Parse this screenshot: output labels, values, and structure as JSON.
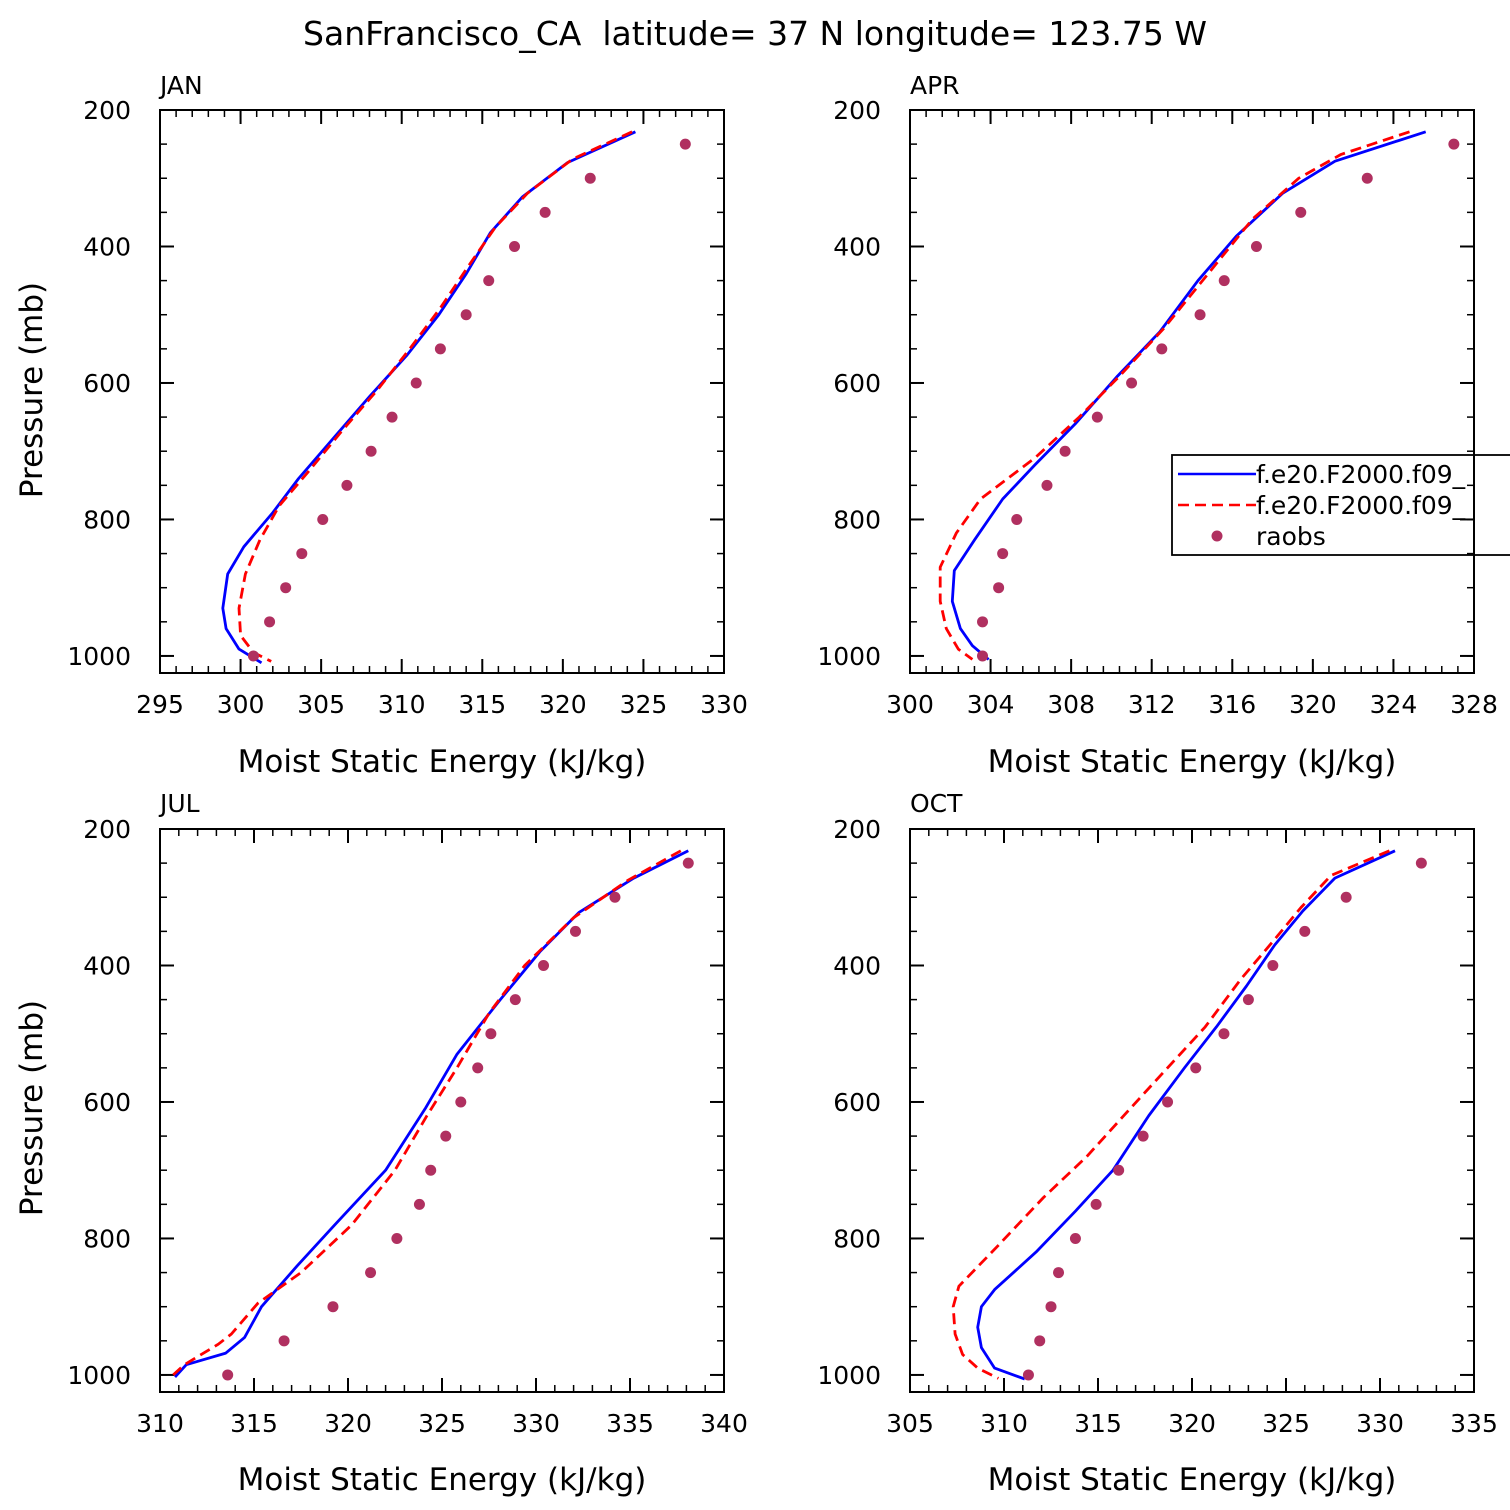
{
  "figure_title": "SanFrancisco_CA  latitude= 37 N longitude= 123.75 W",
  "legend": {
    "entries": [
      {
        "label": "f.e20.F2000.f09_",
        "style": "solid",
        "color": "#0000ff"
      },
      {
        "label": "f.e20.F2000.f09_",
        "style": "dashed",
        "color": "#ff0000"
      },
      {
        "label": "raobs",
        "style": "dot",
        "color": "#b03060"
      }
    ]
  },
  "colors": {
    "series_a": "#0000ff",
    "series_b": "#ff0000",
    "raobs": "#b03060"
  },
  "chart_data": [
    {
      "type": "line",
      "panel_label": "JAN",
      "xlabel": "Moist Static Energy (kJ/kg)",
      "ylabel": "Pressure (mb)",
      "xlim": [
        295,
        330
      ],
      "ylim": [
        200,
        1025
      ],
      "y_inverted": true,
      "xticks": [
        295,
        300,
        305,
        310,
        315,
        320,
        325,
        330
      ],
      "xtick_labels": [
        "295",
        "300",
        "305",
        "310",
        "315",
        "320",
        "325",
        "330"
      ],
      "yticks": [
        200,
        400,
        600,
        800,
        1000
      ],
      "ytick_labels": [
        "200",
        "400",
        "600",
        "800",
        "1000"
      ],
      "series": [
        {
          "style": "solid",
          "points": [
            [
              324.5,
              232
            ],
            [
              320.3,
              277
            ],
            [
              317.5,
              327
            ],
            [
              315.5,
              380
            ],
            [
              314,
              440
            ],
            [
              312.3,
              500
            ],
            [
              310.3,
              560
            ],
            [
              308,
              620
            ],
            [
              305.8,
              680
            ],
            [
              303.6,
              740
            ],
            [
              302,
              790
            ],
            [
              300.2,
              840
            ],
            [
              299.2,
              880
            ],
            [
              298.9,
              930
            ],
            [
              299.1,
              960
            ],
            [
              299.9,
              990
            ],
            [
              301.3,
              1010
            ]
          ]
        },
        {
          "style": "dashed",
          "points": [
            [
              324.3,
              232
            ],
            [
              320.6,
              272
            ],
            [
              317.8,
              322
            ],
            [
              315.8,
              372
            ],
            [
              314.1,
              430
            ],
            [
              312.4,
              490
            ],
            [
              310.5,
              550
            ],
            [
              308.5,
              610
            ],
            [
              306.3,
              670
            ],
            [
              304.2,
              730
            ],
            [
              302.4,
              780
            ],
            [
              301.2,
              830
            ],
            [
              300.3,
              880
            ],
            [
              299.9,
              930
            ],
            [
              300,
              970
            ],
            [
              300.8,
              995
            ],
            [
              301.9,
              1008
            ]
          ]
        },
        {
          "style": "dot",
          "points": [
            [
              327.6,
              250
            ],
            [
              321.7,
              300
            ],
            [
              318.9,
              350
            ],
            [
              317,
              400
            ],
            [
              315.4,
              450
            ],
            [
              314,
              500
            ],
            [
              312.4,
              550
            ],
            [
              310.9,
              600
            ],
            [
              309.4,
              650
            ],
            [
              308.1,
              700
            ],
            [
              306.6,
              750
            ],
            [
              305.1,
              800
            ],
            [
              303.8,
              850
            ],
            [
              302.8,
              900
            ],
            [
              301.8,
              950
            ],
            [
              300.8,
              1000
            ]
          ]
        }
      ]
    },
    {
      "type": "line",
      "panel_label": "APR",
      "xlabel": "Moist Static Energy (kJ/kg)",
      "ylabel": "",
      "xlim": [
        300,
        328
      ],
      "ylim": [
        200,
        1025
      ],
      "y_inverted": true,
      "xticks": [
        300,
        304,
        308,
        312,
        316,
        320,
        324,
        328
      ],
      "xtick_labels": [
        "300",
        "304",
        "308",
        "312",
        "316",
        "320",
        "324",
        "328"
      ],
      "yticks": [
        200,
        400,
        600,
        800,
        1000
      ],
      "ytick_labels": [
        "200",
        "400",
        "600",
        "800",
        "1000"
      ],
      "series": [
        {
          "style": "solid",
          "points": [
            [
              325.6,
              232
            ],
            [
              321.1,
              275
            ],
            [
              318.5,
              322
            ],
            [
              316.2,
              385
            ],
            [
              314.3,
              450
            ],
            [
              312.4,
              525
            ],
            [
              310.3,
              590
            ],
            [
              308.2,
              660
            ],
            [
              306.2,
              720
            ],
            [
              304.6,
              770
            ],
            [
              303.2,
              830
            ],
            [
              302.2,
              875
            ],
            [
              302.1,
              920
            ],
            [
              302.5,
              960
            ],
            [
              303.1,
              985
            ],
            [
              303.9,
              1005
            ]
          ]
        },
        {
          "style": "dashed",
          "points": [
            [
              324.8,
              232
            ],
            [
              321.4,
              265
            ],
            [
              319.3,
              300
            ],
            [
              317,
              360
            ],
            [
              314.8,
              440
            ],
            [
              312.6,
              520
            ],
            [
              310.4,
              590
            ],
            [
              308.4,
              650
            ],
            [
              306.2,
              710
            ],
            [
              303.5,
              770
            ],
            [
              302.3,
              820
            ],
            [
              301.5,
              870
            ],
            [
              301.5,
              920
            ],
            [
              301.8,
              960
            ],
            [
              302.4,
              990
            ],
            [
              303.1,
              1005
            ]
          ]
        },
        {
          "style": "dot",
          "points": [
            [
              327,
              250
            ],
            [
              322.7,
              300
            ],
            [
              319.4,
              350
            ],
            [
              317.2,
              400
            ],
            [
              315.6,
              450
            ],
            [
              314.4,
              500
            ],
            [
              312.5,
              550
            ],
            [
              311,
              600
            ],
            [
              309.3,
              650
            ],
            [
              307.7,
              700
            ],
            [
              306.8,
              750
            ],
            [
              305.3,
              800
            ],
            [
              304.6,
              850
            ],
            [
              304.4,
              900
            ],
            [
              303.6,
              950
            ],
            [
              303.6,
              1000
            ]
          ]
        }
      ]
    },
    {
      "type": "line",
      "panel_label": "JUL",
      "xlabel": "Moist Static Energy (kJ/kg)",
      "ylabel": "Pressure (mb)",
      "xlim": [
        310,
        340
      ],
      "ylim": [
        200,
        1025
      ],
      "y_inverted": true,
      "xticks": [
        310,
        315,
        320,
        325,
        330,
        335,
        340
      ],
      "xtick_labels": [
        "310",
        "315",
        "320",
        "325",
        "330",
        "335",
        "340"
      ],
      "yticks": [
        200,
        400,
        600,
        800,
        1000
      ],
      "ytick_labels": [
        "200",
        "400",
        "600",
        "800",
        "1000"
      ],
      "series": [
        {
          "style": "solid",
          "points": [
            [
              338.1,
              232
            ],
            [
              335.2,
              272
            ],
            [
              332.3,
              322
            ],
            [
              330.2,
              380
            ],
            [
              328.1,
              450
            ],
            [
              325.8,
              530
            ],
            [
              324.1,
              610
            ],
            [
              322,
              700
            ],
            [
              319.3,
              780
            ],
            [
              317.3,
              840
            ],
            [
              315.4,
              900
            ],
            [
              314.5,
              945
            ],
            [
              313.5,
              968
            ],
            [
              311.4,
              985
            ],
            [
              310.8,
              1003
            ]
          ]
        },
        {
          "style": "dashed",
          "points": [
            [
              337.7,
              232
            ],
            [
              334.9,
              275
            ],
            [
              332,
              330
            ],
            [
              329.4,
              400
            ],
            [
              327.5,
              470
            ],
            [
              325.8,
              550
            ],
            [
              324.2,
              620
            ],
            [
              322.5,
              700
            ],
            [
              320.2,
              780
            ],
            [
              317.5,
              850
            ],
            [
              315.2,
              895
            ],
            [
              313.8,
              940
            ],
            [
              313.1,
              955
            ],
            [
              311.3,
              985
            ],
            [
              310.7,
              1000
            ]
          ]
        },
        {
          "style": "dot",
          "points": [
            [
              338.1,
              250
            ],
            [
              334.2,
              300
            ],
            [
              332.1,
              350
            ],
            [
              330.4,
              400
            ],
            [
              328.9,
              450
            ],
            [
              327.6,
              500
            ],
            [
              326.9,
              550
            ],
            [
              326,
              600
            ],
            [
              325.2,
              650
            ],
            [
              324.4,
              700
            ],
            [
              323.8,
              750
            ],
            [
              322.6,
              800
            ],
            [
              321.2,
              850
            ],
            [
              319.2,
              900
            ],
            [
              316.6,
              950
            ],
            [
              313.6,
              1000
            ]
          ]
        }
      ]
    },
    {
      "type": "line",
      "panel_label": "OCT",
      "xlabel": "Moist Static Energy (kJ/kg)",
      "ylabel": "",
      "xlim": [
        305,
        335
      ],
      "ylim": [
        200,
        1025
      ],
      "y_inverted": true,
      "xticks": [
        305,
        310,
        315,
        320,
        325,
        330,
        335
      ],
      "xtick_labels": [
        "305",
        "310",
        "315",
        "320",
        "325",
        "330",
        "335"
      ],
      "yticks": [
        200,
        400,
        600,
        800,
        1000
      ],
      "ytick_labels": [
        "200",
        "400",
        "600",
        "800",
        "1000"
      ],
      "series": [
        {
          "style": "solid",
          "points": [
            [
              330.8,
              232
            ],
            [
              327.6,
              272
            ],
            [
              325.9,
              320
            ],
            [
              324.4,
              370
            ],
            [
              322.9,
              430
            ],
            [
              321.3,
              490
            ],
            [
              319.6,
              550
            ],
            [
              317.7,
              620
            ],
            [
              315.8,
              700
            ],
            [
              313.8,
              760
            ],
            [
              311.7,
              820
            ],
            [
              309.5,
              875
            ],
            [
              308.8,
              900
            ],
            [
              308.6,
              930
            ],
            [
              308.8,
              960
            ],
            [
              309.5,
              990
            ],
            [
              311.1,
              1006
            ]
          ]
        },
        {
          "style": "dashed",
          "points": [
            [
              330.5,
              232
            ],
            [
              327.4,
              268
            ],
            [
              325.8,
              315
            ],
            [
              324.3,
              365
            ],
            [
              322.6,
              420
            ],
            [
              320.7,
              490
            ],
            [
              318.7,
              550
            ],
            [
              316.7,
              610
            ],
            [
              314.4,
              680
            ],
            [
              312.1,
              740
            ],
            [
              309.7,
              810
            ],
            [
              307.6,
              870
            ],
            [
              307.3,
              900
            ],
            [
              307.4,
              940
            ],
            [
              307.8,
              970
            ],
            [
              308.6,
              990
            ],
            [
              309.7,
              1005
            ]
          ]
        },
        {
          "style": "dot",
          "points": [
            [
              332.2,
              250
            ],
            [
              328.2,
              300
            ],
            [
              326,
              350
            ],
            [
              324.3,
              400
            ],
            [
              323,
              450
            ],
            [
              321.7,
              500
            ],
            [
              320.2,
              550
            ],
            [
              318.7,
              600
            ],
            [
              317.4,
              650
            ],
            [
              316.1,
              700
            ],
            [
              314.9,
              750
            ],
            [
              313.8,
              800
            ],
            [
              312.9,
              850
            ],
            [
              312.5,
              900
            ],
            [
              311.9,
              950
            ],
            [
              311.3,
              1000
            ]
          ]
        }
      ]
    }
  ]
}
